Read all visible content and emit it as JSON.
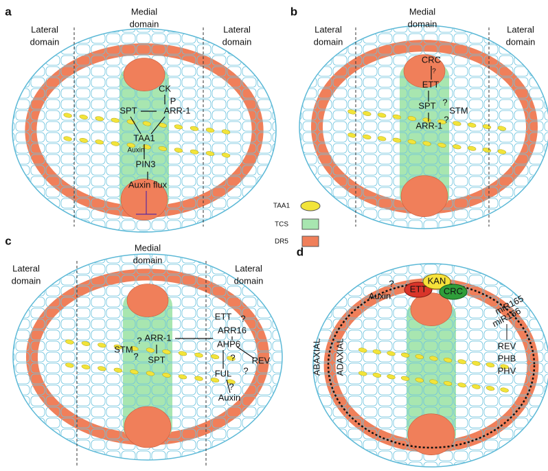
{
  "panels": [
    {
      "labels": [
        "a",
        "Medial",
        "domain",
        "Lateral",
        "domain",
        "Lateral",
        "domain",
        "CK",
        "P",
        "SPT",
        "ARR-1",
        "TAA1",
        "Auxin",
        "PIN3",
        "Auxin flux"
      ]
    },
    {
      "labels": [
        "b",
        "Medial",
        "domain",
        "Lateral",
        "domain",
        "Lateral",
        "domain",
        "CRC",
        "?",
        "ETT",
        "SPT",
        "?",
        "STM",
        "ARR-1",
        "?"
      ]
    },
    {
      "labels": [
        "c",
        "Medial",
        "domain",
        "Lateral",
        "domain",
        "Lateral",
        "domain",
        "ETT",
        "ARR16",
        "AHP6",
        "REV",
        "FUL",
        "Auxin",
        "ARR-1",
        "STM",
        "SPT",
        "?",
        "?",
        "?",
        "?",
        "?",
        "?"
      ]
    },
    {
      "labels": [
        "d",
        "Auxin",
        "?",
        "ETT",
        "KAN",
        "CRC",
        "miR165",
        "miR166",
        "REV",
        "PHB",
        "PHV",
        "ABAXIAL",
        "ADAXIAL"
      ]
    }
  ],
  "legend": [
    "TAA1",
    "TCS",
    "DR5"
  ]
}
